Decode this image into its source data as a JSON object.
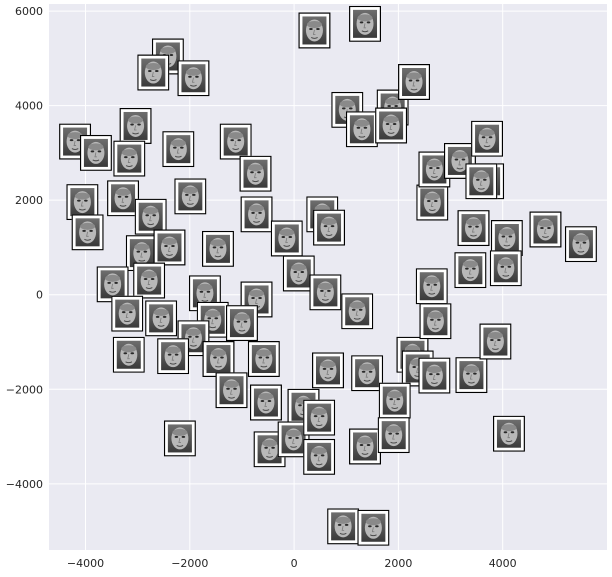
{
  "chart_data": {
    "type": "scatter",
    "title": "",
    "xlabel": "",
    "ylabel": "",
    "xlim": [
      -4700,
      6000
    ],
    "ylim": [
      -5400,
      6150
    ],
    "grid": true,
    "background": "#eaeaf2",
    "grid_color": "#ffffff",
    "point_color": "#000000",
    "marker": "face-thumbnail",
    "xticks": [
      -4000,
      -2000,
      0,
      2000,
      4000
    ],
    "yticks": [
      6000,
      4000,
      2000,
      0,
      -2000,
      -4000
    ],
    "xtick_labels": [
      "−4000",
      "−2000",
      "0",
      "2000",
      "4000"
    ],
    "ytick_labels": [
      "6000",
      "4000",
      "2000",
      "0",
      "−2000",
      "−4000"
    ],
    "points": [
      [
        -4200,
        3240
      ],
      [
        -3040,
        3570
      ],
      [
        -2420,
        5040
      ],
      [
        -1930,
        4580
      ],
      [
        -1120,
        3240
      ],
      [
        -3160,
        2880
      ],
      [
        -2220,
        3080
      ],
      [
        390,
        5590
      ],
      [
        1360,
        5730
      ],
      [
        -740,
        2560
      ],
      [
        -3280,
        2040
      ],
      [
        -4060,
        1960
      ],
      [
        -2750,
        1650
      ],
      [
        -1990,
        2080
      ],
      [
        -720,
        1700
      ],
      [
        -3960,
        1320
      ],
      [
        -2920,
        880
      ],
      [
        -2390,
        1000
      ],
      [
        -1460,
        970
      ],
      [
        -140,
        1190
      ],
      [
        -3480,
        220
      ],
      [
        -2780,
        300
      ],
      [
        -1710,
        30
      ],
      [
        -720,
        -100
      ],
      [
        540,
        1700
      ],
      [
        670,
        1420
      ],
      [
        90,
        450
      ],
      [
        -2550,
        -500
      ],
      [
        -1560,
        -530
      ],
      [
        -1000,
        -600
      ],
      [
        -3200,
        -400
      ],
      [
        -1930,
        -920
      ],
      [
        -2320,
        -1300
      ],
      [
        -1450,
        -1360
      ],
      [
        -580,
        -1360
      ],
      [
        -3170,
        -1270
      ],
      [
        -1200,
        -2020
      ],
      [
        -540,
        -2280
      ],
      [
        180,
        -2370
      ],
      [
        650,
        -1600
      ],
      [
        1400,
        -1660
      ],
      [
        600,
        50
      ],
      [
        1210,
        -350
      ],
      [
        2270,
        -1270
      ],
      [
        2370,
        -1560
      ],
      [
        2690,
        -1710
      ],
      [
        2640,
        180
      ],
      [
        2710,
        -560
      ],
      [
        3400,
        -1700
      ],
      [
        3860,
        -990
      ],
      [
        3440,
        1410
      ],
      [
        3720,
        2400
      ],
      [
        4080,
        1200
      ],
      [
        4820,
        1380
      ],
      [
        5500,
        1070
      ],
      [
        3380,
        520
      ],
      [
        4060,
        560
      ],
      [
        1890,
        3960
      ],
      [
        2300,
        4500
      ],
      [
        2650,
        1950
      ],
      [
        2690,
        2650
      ],
      [
        3180,
        2830
      ],
      [
        3590,
        2400
      ],
      [
        -2190,
        -3040
      ],
      [
        -470,
        -3270
      ],
      [
        -10,
        -3060
      ],
      [
        480,
        -2600
      ],
      [
        480,
        -3430
      ],
      [
        1360,
        -3210
      ],
      [
        1930,
        -2240
      ],
      [
        1910,
        -2970
      ],
      [
        4120,
        -2940
      ],
      [
        940,
        -4900
      ],
      [
        1520,
        -4930
      ],
      [
        1020,
        3910
      ],
      [
        1300,
        3500
      ],
      [
        1860,
        3580
      ],
      [
        -3800,
        3000
      ],
      [
        -2700,
        4700
      ],
      [
        3700,
        3300
      ]
    ]
  }
}
